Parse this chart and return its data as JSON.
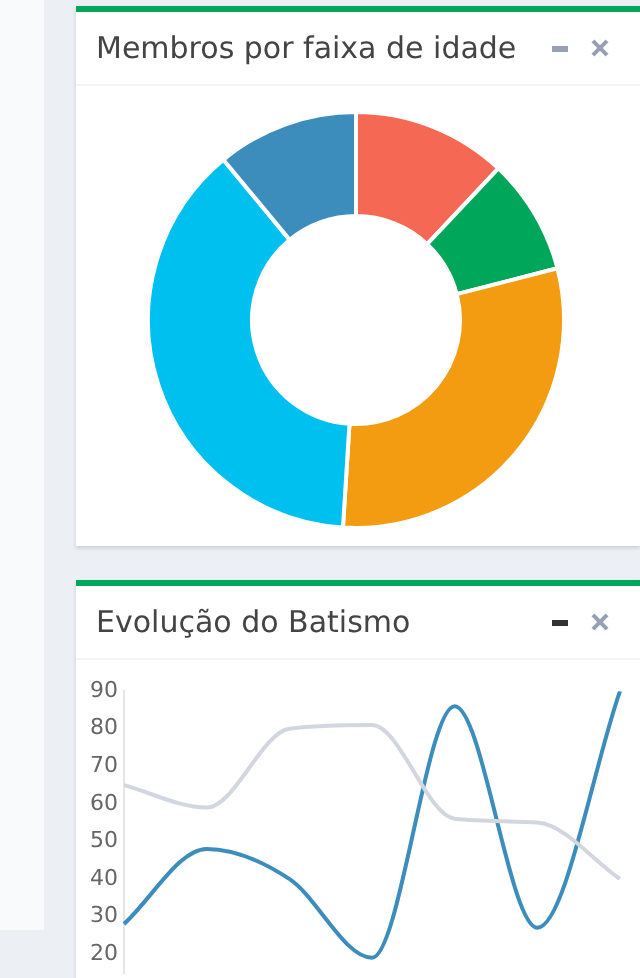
{
  "chart_data": [
    {
      "type": "donut",
      "title": "Membros por faixa de idade",
      "categories": [
        null,
        null,
        null,
        null,
        null
      ],
      "values": [
        12,
        9,
        30,
        38,
        11
      ],
      "colors": [
        "#f56954",
        "#00a65a",
        "#f39c12",
        "#00c0ef",
        "#3c8dbc"
      ],
      "legend": false
    },
    {
      "type": "line",
      "title": "Evolução do Batismo",
      "categories": [
        null,
        null,
        null,
        null,
        null,
        null,
        null
      ],
      "series": [
        {
          "color": "#d2d6de",
          "values": [
            65,
            59,
            80,
            81,
            56,
            55,
            40
          ]
        },
        {
          "color": "#3c8dbc",
          "values": [
            28,
            48,
            40,
            19,
            86,
            27,
            90
          ]
        }
      ],
      "ylim": [
        15,
        90
      ],
      "yticks": [
        20,
        30,
        40,
        50,
        60,
        70,
        80,
        90
      ],
      "grid": false,
      "legend": false,
      "tick_labels": "y",
      "marker": "none"
    }
  ]
}
